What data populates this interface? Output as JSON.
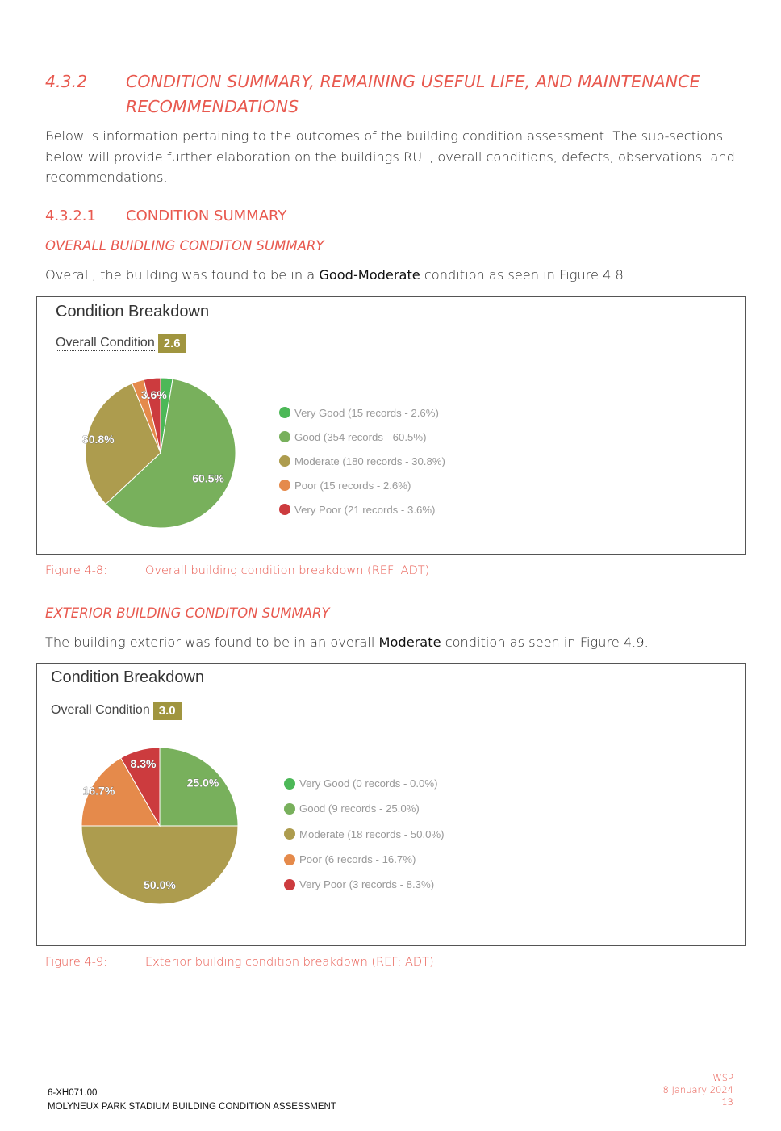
{
  "section": {
    "number": "4.3.2",
    "title": "CONDITION SUMMARY, REMAINING USEFUL LIFE, AND MAINTENANCE RECOMMENDATIONS"
  },
  "intro": "Below is information pertaining to the outcomes of the building condition assessment. The sub-sections below will provide further elaboration on the buildings RUL, overall conditions, defects, observations, and recommendations.",
  "subsection": {
    "number": "4.3.2.1",
    "title": "CONDITION SUMMARY"
  },
  "overall_block": {
    "title": "OVERALL BUIDLING CONDITON SUMMARY",
    "text_before": "Overall, the building was found to be in a ",
    "text_bold": "Good-Moderate",
    "text_after": " condition as seen in Figure 4.8."
  },
  "exterior_block": {
    "title": "EXTERIOR BUILDING CONDITON SUMMARY",
    "text_before": "The building exterior was found to be in an overall ",
    "text_bold": "Moderate",
    "text_after": " condition as seen in Figure 4.9."
  },
  "chart_data": [
    {
      "type": "pie",
      "title": "Condition Breakdown",
      "overall_label": "Overall Condition",
      "overall_value": "2.6",
      "slices": [
        {
          "label": "Very Good",
          "records": 15,
          "percent": 2.6,
          "legend": "Very Good (15 records - 2.6%)",
          "color": "#4cb857"
        },
        {
          "label": "Good",
          "records": 354,
          "percent": 60.5,
          "legend": "Good (354 records - 60.5%)",
          "color": "#78b05c",
          "data_label": "60.5%"
        },
        {
          "label": "Moderate",
          "records": 180,
          "percent": 30.8,
          "legend": "Moderate (180 records - 30.8%)",
          "color": "#ad9c4e",
          "data_label": "30.8%"
        },
        {
          "label": "Poor",
          "records": 15,
          "percent": 2.6,
          "legend": "Poor (15 records - 2.6%)",
          "color": "#e58a4b"
        },
        {
          "label": "Very Poor",
          "records": 21,
          "percent": 3.6,
          "legend": "Very Poor (21 records - 3.6%)",
          "color": "#cc3b3e",
          "data_label": "3.6%"
        }
      ],
      "legend_position": "right"
    },
    {
      "type": "pie",
      "title": "Condition Breakdown",
      "overall_label": "Overall Condition",
      "overall_value": "3.0",
      "slices": [
        {
          "label": "Very Good",
          "records": 0,
          "percent": 0.0,
          "legend": "Very Good (0 records - 0.0%)",
          "color": "#4cb857"
        },
        {
          "label": "Good",
          "records": 9,
          "percent": 25.0,
          "legend": "Good (9 records - 25.0%)",
          "color": "#78b05c",
          "data_label": "25.0%"
        },
        {
          "label": "Moderate",
          "records": 18,
          "percent": 50.0,
          "legend": "Moderate (18 records - 50.0%)",
          "color": "#ad9c4e",
          "data_label": "50.0%"
        },
        {
          "label": "Poor",
          "records": 6,
          "percent": 16.7,
          "legend": "Poor (6 records - 16.7%)",
          "color": "#e58a4b",
          "data_label": "16.7%"
        },
        {
          "label": "Very Poor",
          "records": 3,
          "percent": 8.3,
          "legend": "Very Poor (3 records - 8.3%)",
          "color": "#cc3b3e",
          "data_label": "8.3%"
        }
      ],
      "legend_position": "right"
    }
  ],
  "captions": [
    {
      "number": "Figure 4-8:",
      "text": "Overall building condition breakdown (REF: ADT)"
    },
    {
      "number": "Figure 4-9:",
      "text": "Exterior building condition breakdown (REF: ADT)"
    }
  ],
  "footer": {
    "project_code": "6-XH071.00",
    "document_title": "MOLYNEUX PARK STADIUM BUILDING CONDITION ASSESSMENT",
    "company": "WSP",
    "date": "8 January 2024",
    "page": "13"
  }
}
